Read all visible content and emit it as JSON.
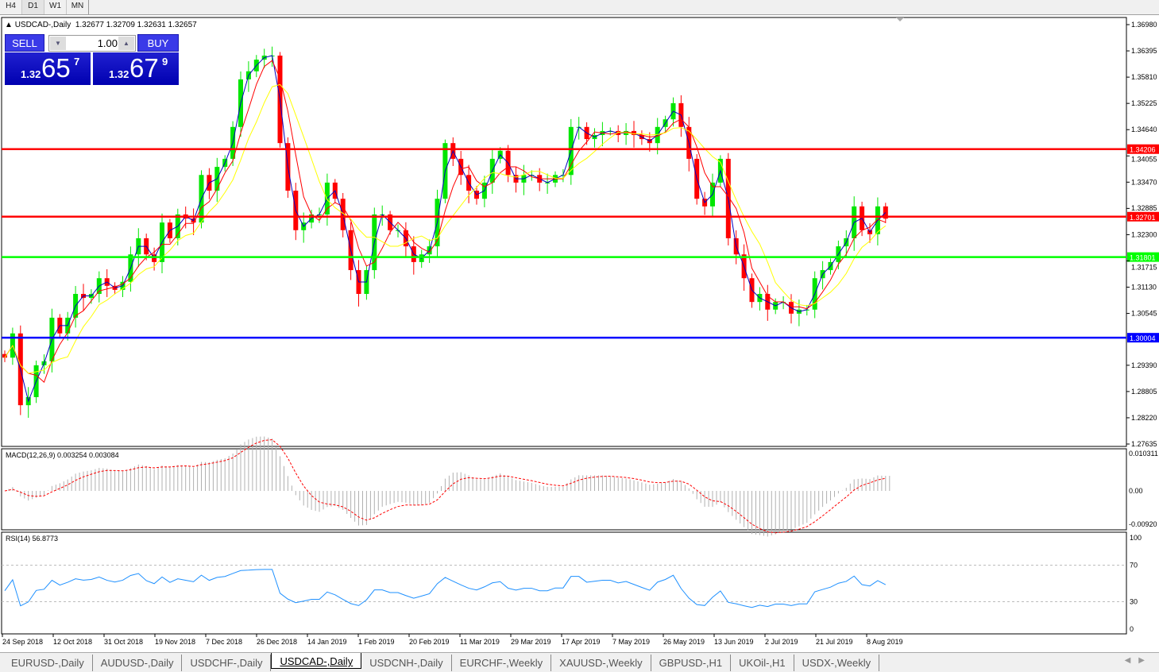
{
  "timeframes": [
    "H4",
    "D1",
    "W1",
    "MN"
  ],
  "active_timeframe": "D1",
  "chart": {
    "symbol_label": "USDCAD-,Daily",
    "ohlc": "1.32677 1.32709 1.32631 1.32657",
    "macd_label": "MACD(12,26,9) 0.003254 0.003084",
    "rsi_label": "RSI(14) 56.8773"
  },
  "trade_panel": {
    "sell_label": "SELL",
    "buy_label": "BUY",
    "lots": "1.00",
    "sell_prefix": "1.32",
    "sell_big": "65",
    "sell_sup": "7",
    "buy_prefix": "1.32",
    "buy_big": "67",
    "buy_sup": "9"
  },
  "tabs": [
    "EURUSD-,Daily",
    "AUDUSD-,Daily",
    "USDCHF-,Daily",
    "USDCAD-,Daily",
    "USDCNH-,Daily",
    "EURCHF-,Weekly",
    "XAUUSD-,Weekly",
    "GBPUSD-,H1",
    "UKOil-,H1",
    "USDX-,Weekly"
  ],
  "active_tab": "USDCAD-,Daily",
  "chart_data": {
    "type": "candlestick",
    "ylim": [
      1.27635,
      1.3698
    ],
    "price_ticks": [
      "1.36980",
      "1.36395",
      "1.35810",
      "1.35225",
      "1.34640",
      "1.34055",
      "1.33470",
      "1.32885",
      "1.32300",
      "1.31715",
      "1.31130",
      "1.30545",
      "1.29390",
      "1.28805",
      "1.28220",
      "1.27635"
    ],
    "x_ticks": [
      "24 Sep 2018",
      "12 Oct 2018",
      "31 Oct 2018",
      "19 Nov 2018",
      "7 Dec 2018",
      "26 Dec 2018",
      "14 Jan 2019",
      "1 Feb 2019",
      "20 Feb 2019",
      "11 Mar 2019",
      "29 Mar 2019",
      "17 Apr 2019",
      "7 May 2019",
      "26 May 2019",
      "13 Jun 2019",
      "2 Jul 2019",
      "21 Jul 2019",
      "8 Aug 2019"
    ],
    "closes": [
      1.2956,
      1.301,
      1.285,
      1.2868,
      1.2939,
      1.2948,
      1.3045,
      1.301,
      1.3045,
      1.3098,
      1.3089,
      1.3098,
      1.3133,
      1.3116,
      1.3107,
      1.3125,
      1.3186,
      1.3222,
      1.3186,
      1.3169,
      1.3257,
      1.3222,
      1.3275,
      1.3266,
      1.3257,
      1.3363,
      1.3328,
      1.3381,
      1.3399,
      1.347,
      1.3576,
      1.3594,
      1.362,
      1.3629,
      1.3629,
      1.3434,
      1.3328,
      1.324,
      1.3257,
      1.3275,
      1.3275,
      1.3346,
      1.331,
      1.324,
      1.3151,
      1.3098,
      1.3151,
      1.3275,
      1.3275,
      1.324,
      1.324,
      1.3204,
      1.3169,
      1.3186,
      1.3204,
      1.331,
      1.3434,
      1.3399,
      1.3363,
      1.3328,
      1.331,
      1.3346,
      1.3399,
      1.3417,
      1.3363,
      1.3346,
      1.3363,
      1.3363,
      1.3346,
      1.3346,
      1.3363,
      1.3363,
      1.347,
      1.347,
      1.3443,
      1.3452,
      1.3461,
      1.3461,
      1.3452,
      1.3461,
      1.3452,
      1.3443,
      1.3434,
      1.347,
      1.3487,
      1.3523,
      1.347,
      1.3399,
      1.331,
      1.3293,
      1.3346,
      1.3399,
      1.3222,
      1.3186,
      1.3133,
      1.308,
      1.3098,
      1.3063,
      1.308,
      1.308,
      1.3054,
      1.3063,
      1.3063,
      1.3133,
      1.3151,
      1.3169,
      1.3204,
      1.3222,
      1.3293,
      1.324,
      1.3231,
      1.3293,
      1.32657
    ],
    "horizontal_levels": [
      {
        "price": "1.34206",
        "color": "#ff0000"
      },
      {
        "price": "1.32701",
        "color": "#ff0000"
      },
      {
        "price": "1.31801",
        "color": "#00ff00"
      },
      {
        "price": "1.30004",
        "color": "#0000ff"
      }
    ],
    "colors": {
      "bull": "#00e600",
      "bear": "#ff0000",
      "ma_fast": "#0000c0",
      "ma_mid": "#ff0000",
      "ma_slow": "#ffff00",
      "macd_hist": "#b0b0b0",
      "macd_signal": "#ff0000",
      "rsi": "#1e90ff"
    },
    "macd": {
      "ylim": [
        -0.0092,
        0.010311
      ],
      "ticks": [
        "0.010311",
        "0.00",
        "-0.00920"
      ]
    },
    "rsi": {
      "ylim": [
        0,
        100
      ],
      "ticks": [
        "100",
        "70",
        "30",
        "0"
      ],
      "levels": [
        70,
        30
      ]
    }
  }
}
